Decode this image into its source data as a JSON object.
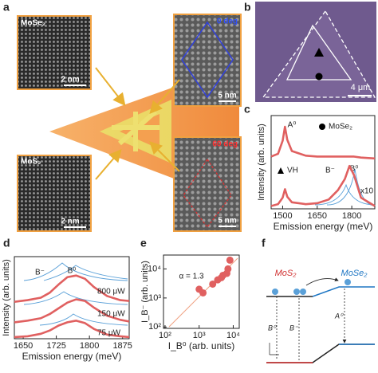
{
  "panel_labels": [
    "a",
    "b",
    "c",
    "d",
    "e",
    "f"
  ],
  "panel_a": {
    "images": [
      {
        "label": "MoSe₂",
        "scale": "2 nm"
      },
      {
        "label": "MoS₂",
        "scale": "2 nm"
      },
      {
        "label": "0 deg",
        "scale": "5 nm"
      },
      {
        "label": "60 deg",
        "scale": "5 nm"
      }
    ]
  },
  "panel_b": {
    "scale": "4 μm"
  },
  "chart_data": [
    {
      "type": "line",
      "xlabel": "Emission energy (meV)",
      "ylabel": "Intensity (arb. units)",
      "x": [
        1450,
        1480,
        1500,
        1510,
        1520,
        1540,
        1600,
        1650,
        1700,
        1740,
        1770,
        1790,
        1810,
        1840,
        1900
      ],
      "series": [
        {
          "name": "MoSe₂",
          "color": "#e06060",
          "values": [
            5.6,
            5.9,
            7.3,
            8.8,
            7.4,
            6.2,
            5.7,
            5.6,
            5.6,
            5.6,
            5.6,
            5.6,
            5.6,
            5.5,
            5.4
          ]
        },
        {
          "name": "VH",
          "color": "#e06060",
          "values": [
            0.3,
            0.5,
            1.2,
            2.1,
            1.3,
            0.7,
            0.5,
            0.6,
            1.0,
            2.0,
            3.2,
            4.6,
            3.6,
            1.2,
            0.3
          ]
        }
      ],
      "annotations": [
        "A⁰",
        "B⁻",
        "B⁰",
        "x10"
      ],
      "xlim": [
        1450,
        1900
      ],
      "xticks": [
        1500,
        1650,
        1800
      ],
      "ylim": [
        0,
        10
      ]
    },
    {
      "type": "line",
      "xlabel": "Emission energy (meV)",
      "ylabel": "Intensity (arb. units)",
      "x": [
        1630,
        1660,
        1690,
        1710,
        1730,
        1750,
        1770,
        1790,
        1810,
        1840,
        1870,
        1890
      ],
      "series": [
        {
          "name": "800 μW",
          "color": "#e06060",
          "values": [
            4.5,
            4.7,
            5.0,
            5.6,
            6.6,
            7.5,
            7.7,
            7.3,
            6.3,
            5.2,
            4.7,
            4.6
          ]
        },
        {
          "name": "150 μW",
          "color": "#e06060",
          "values": [
            2.0,
            2.2,
            2.5,
            3.0,
            3.7,
            4.4,
            4.8,
            4.6,
            3.8,
            2.8,
            2.3,
            2.1
          ]
        },
        {
          "name": "75 μW",
          "color": "#e06060",
          "values": [
            0.2,
            0.3,
            0.6,
            1.0,
            1.6,
            2.0,
            2.2,
            1.9,
            1.2,
            0.5,
            0.3,
            0.2
          ]
        }
      ],
      "annotations": [
        "B⁻",
        "B⁰"
      ],
      "xlim": [
        1630,
        1890
      ],
      "xticks": [
        1650,
        1725,
        1800,
        1875
      ],
      "ylim": [
        0,
        10
      ]
    },
    {
      "type": "scatter",
      "xlabel": "I_B⁰ (arb. units)",
      "ylabel": "I_B⁻ (arb. units)",
      "log_scale": true,
      "color": "#e06060",
      "x": [
        1000,
        1300,
        2500,
        3500,
        4500,
        5000,
        6500,
        7000,
        8000
      ],
      "values": [
        2000,
        1500,
        3000,
        4200,
        5000,
        6000,
        7000,
        10000,
        20000
      ],
      "annotations": [
        "α = 1.3"
      ],
      "xlim": [
        90,
        15000
      ],
      "xticks": [
        {
          "value": 100,
          "label": "10²"
        },
        {
          "value": 1000,
          "label": "10³"
        },
        {
          "value": 10000,
          "label": "10⁴"
        }
      ],
      "ylim": [
        90,
        30000
      ],
      "yticks": [
        {
          "value": 100,
          "label": "10²"
        },
        {
          "value": 1000,
          "label": "10³"
        },
        {
          "value": 10000,
          "label": "10⁴"
        }
      ]
    }
  ],
  "panel_f": {
    "mos2": "MoS₂",
    "mose2": "MoSe₂",
    "a0": "A⁰",
    "b0": "B⁰",
    "bminus": "B⁻"
  }
}
